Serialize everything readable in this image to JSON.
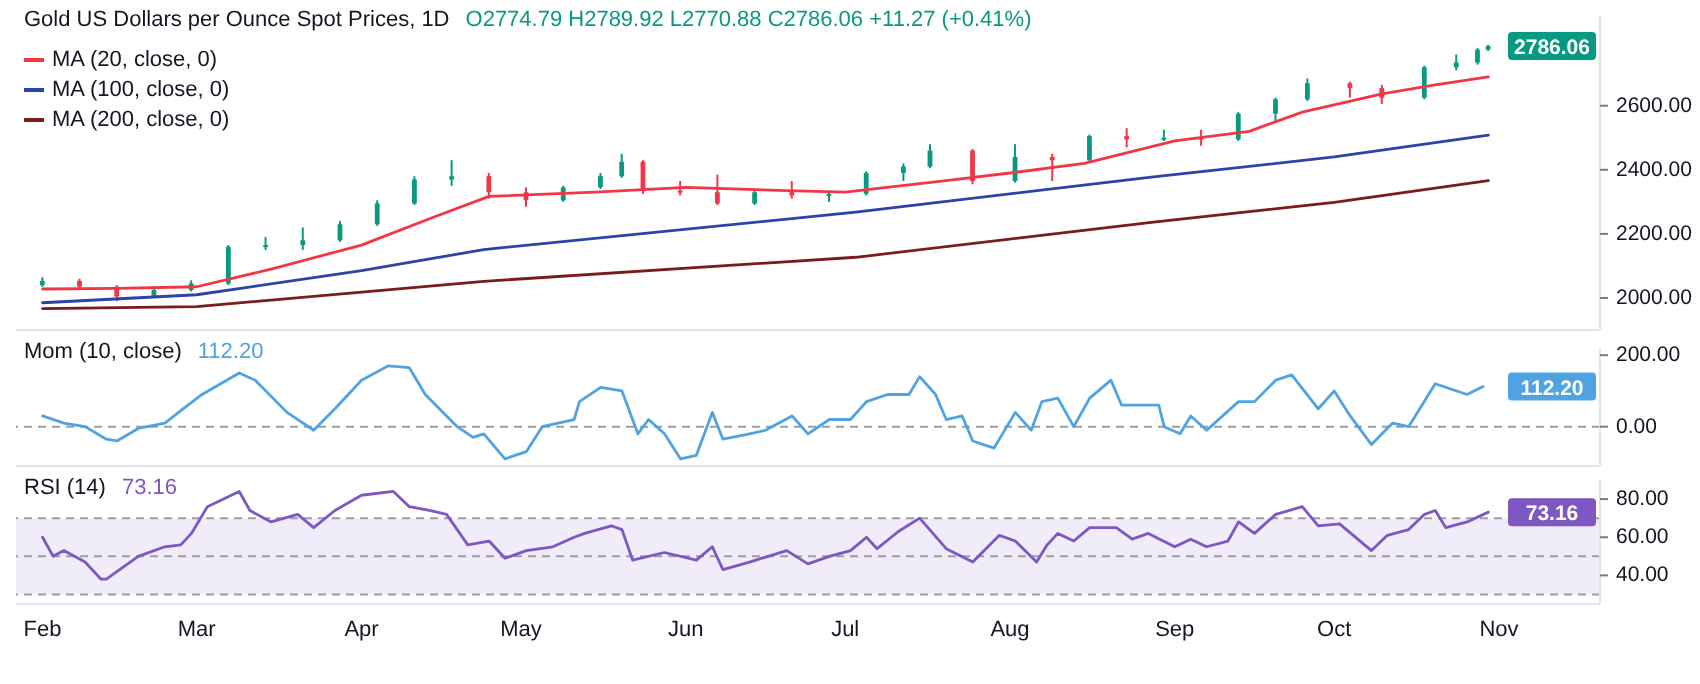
{
  "chart_data": [
    {
      "type": "candlestick",
      "title": "Gold US Dollars per Ounce Spot Prices, 1D",
      "subtitle": "O2774.79 H2789.92 L2770.88 C2786.06 +11.27 (+0.41%)",
      "legend": "top left",
      "tick_labels": "y",
      "xlim": [
        "--01-27",
        "--11-20"
      ],
      "ylim": [
        1900,
        2880
      ],
      "yticks": [
        {
          "value": 2000,
          "label": "2000.00"
        },
        {
          "value": 2200,
          "label": "2200.00"
        },
        {
          "value": 2400,
          "label": "2400.00"
        },
        {
          "value": 2600,
          "label": "2600.00"
        }
      ],
      "annotations": [
        {
          "text": "2786.06",
          "x": "--10-30",
          "y": 2786.06
        }
      ],
      "series": [
        {
          "type": "candlestick",
          "x": [
            "--02-01",
            "--02-08",
            "--02-15",
            "--02-22",
            "--02-29",
            "--03-07",
            "--03-14",
            "--03-21",
            "--03-28",
            "--04-04",
            "--04-11",
            "--04-18",
            "--04-25",
            "--05-02",
            "--05-09",
            "--05-16",
            "--05-20",
            "--05-24",
            "--05-31",
            "--06-07",
            "--06-14",
            "--06-21",
            "--06-28",
            "--07-05",
            "--07-12",
            "--07-17",
            "--07-25",
            "--08-02",
            "--08-09",
            "--08-16",
            "--08-23",
            "--08-30",
            "--09-06",
            "--09-13",
            "--09-20",
            "--09-26",
            "--10-04",
            "--10-10",
            "--10-18",
            "--10-24",
            "--10-28",
            "--10-30"
          ],
          "ohlc": [
            [
              2040,
              2065,
              2035,
              2053
            ],
            [
              2053,
              2060,
              2025,
              2035
            ],
            [
              2035,
              2040,
              1990,
              2005
            ],
            [
              2005,
              2035,
              2000,
              2025
            ],
            [
              2025,
              2055,
              2020,
              2045
            ],
            [
              2045,
              2165,
              2040,
              2160
            ],
            [
              2160,
              2190,
              2150,
              2165
            ],
            [
              2165,
              2220,
              2150,
              2180
            ],
            [
              2180,
              2240,
              2175,
              2230
            ],
            [
              2230,
              2305,
              2225,
              2295
            ],
            [
              2295,
              2380,
              2290,
              2370
            ],
            [
              2370,
              2430,
              2350,
              2380
            ],
            [
              2380,
              2390,
              2310,
              2330
            ],
            [
              2330,
              2345,
              2285,
              2305
            ],
            [
              2305,
              2350,
              2300,
              2345
            ],
            [
              2345,
              2390,
              2340,
              2380
            ],
            [
              2380,
              2450,
              2375,
              2425
            ],
            [
              2425,
              2430,
              2325,
              2335
            ],
            [
              2335,
              2365,
              2320,
              2330
            ],
            [
              2330,
              2385,
              2290,
              2295
            ],
            [
              2295,
              2335,
              2290,
              2330
            ],
            [
              2330,
              2365,
              2310,
              2320
            ],
            [
              2320,
              2335,
              2300,
              2325
            ],
            [
              2325,
              2395,
              2320,
              2390
            ],
            [
              2390,
              2420,
              2365,
              2410
            ],
            [
              2410,
              2480,
              2405,
              2460
            ],
            [
              2460,
              2465,
              2355,
              2365
            ],
            [
              2365,
              2480,
              2360,
              2440
            ],
            [
              2440,
              2450,
              2365,
              2430
            ],
            [
              2430,
              2510,
              2425,
              2505
            ],
            [
              2505,
              2530,
              2470,
              2495
            ],
            [
              2495,
              2525,
              2490,
              2500
            ],
            [
              2500,
              2525,
              2475,
              2495
            ],
            [
              2495,
              2580,
              2490,
              2575
            ],
            [
              2575,
              2625,
              2550,
              2620
            ],
            [
              2620,
              2685,
              2615,
              2670
            ],
            [
              2670,
              2675,
              2625,
              2655
            ],
            [
              2655,
              2665,
              2605,
              2625
            ],
            [
              2625,
              2725,
              2620,
              2720
            ],
            [
              2720,
              2760,
              2710,
              2735
            ],
            [
              2735,
              2780,
              2728,
              2774.79
            ],
            [
              2774.79,
              2789.92,
              2770.88,
              2786.06
            ]
          ],
          "colors": [
            "#089981",
            "#f23645",
            "#f23645",
            "#089981",
            "#089981",
            "#089981",
            "#089981",
            "#089981",
            "#089981",
            "#089981",
            "#089981",
            "#089981",
            "#f23645",
            "#f23645",
            "#089981",
            "#089981",
            "#089981",
            "#f23645",
            "#f23645",
            "#f23645",
            "#089981",
            "#f23645",
            "#089981",
            "#089981",
            "#089981",
            "#089981",
            "#f23645",
            "#089981",
            "#f23645",
            "#089981",
            "#f23645",
            "#089981",
            "#f23645",
            "#089981",
            "#089981",
            "#089981",
            "#f23645",
            "#f23645",
            "#089981",
            "#089981",
            "#089981",
            "#089981"
          ]
        },
        {
          "type": "line",
          "name": "MA (20, close, 0)",
          "color": "#f23645",
          "x": [
            "--02-01",
            "--02-15",
            "--03-01",
            "--03-15",
            "--04-01",
            "--04-15",
            "--04-25",
            "--05-15",
            "--06-01",
            "--06-20",
            "--07-01",
            "--07-20",
            "--08-01",
            "--08-15",
            "--09-01",
            "--09-15",
            "--09-25",
            "--10-10",
            "--10-20",
            "--10-30"
          ],
          "values": [
            2028,
            2030,
            2035,
            2090,
            2165,
            2255,
            2317,
            2330,
            2345,
            2335,
            2330,
            2366,
            2390,
            2420,
            2490,
            2520,
            2580,
            2637,
            2665,
            2690
          ]
        },
        {
          "type": "line",
          "name": "MA (100, close, 0)",
          "color": "#2a44a8",
          "x": [
            "--02-01",
            "--03-01",
            "--04-01",
            "--04-24",
            "--07-03",
            "--08-28",
            "--10-01",
            "--10-30"
          ],
          "values": [
            1985,
            2010,
            2085,
            2151,
            2268,
            2378,
            2440,
            2508
          ]
        },
        {
          "type": "line",
          "name": "MA (200, close, 0)",
          "color": "#7b1c1c",
          "x": [
            "--02-01",
            "--03-01",
            "--04-24",
            "--07-03",
            "--08-28",
            "--10-01",
            "--10-30"
          ],
          "values": [
            1967,
            1973,
            2052,
            2127,
            2237,
            2298,
            2366
          ]
        }
      ]
    },
    {
      "type": "line",
      "title": "Mom (10, close)",
      "tick_labels": "y",
      "xlim": [
        "--01-27",
        "--11-20"
      ],
      "ylim": [
        -110,
        220
      ],
      "yticks": [
        {
          "value": 0,
          "label": "0.00"
        },
        {
          "value": 200,
          "label": "200.00"
        }
      ],
      "ref_lines": [
        {
          "axis": "y",
          "value": 0,
          "color": "#9e9e9e",
          "line_style": "dashed"
        }
      ],
      "annotations": [
        "112.20",
        {
          "text": "112.20",
          "x": "--10-29",
          "y": 112.2
        }
      ],
      "series": [
        {
          "color": "#4fa3e0",
          "x": [
            "--02-01",
            "--02-05",
            "--02-09",
            "--02-13",
            "--02-15",
            "--02-19",
            "--02-24",
            "--02-27",
            "--03-02",
            "--03-09",
            "--03-12",
            "--03-18",
            "--03-23",
            "--03-27",
            "--04-01",
            "--04-06",
            "--04-10",
            "--04-13",
            "--04-19",
            "--04-22",
            "--04-24",
            "--04-28",
            "--05-02",
            "--05-05",
            "--05-11",
            "--05-12",
            "--05-16",
            "--05-20",
            "--05-23",
            "--05-25",
            "--05-28",
            "--05-31",
            "--06-03",
            "--06-06",
            "--06-08",
            "--06-13",
            "--06-16",
            "--06-21",
            "--06-24",
            "--06-28",
            "--07-02",
            "--07-05",
            "--07-09",
            "--07-13",
            "--07-15",
            "--07-18",
            "--07-20",
            "--07-23",
            "--07-25",
            "--07-29",
            "--08-02",
            "--08-05",
            "--08-07",
            "--08-10",
            "--08-13",
            "--08-16",
            "--08-20",
            "--08-22",
            "--08-26",
            "--08-29",
            "--08-30",
            "--09-02",
            "--09-04",
            "--09-07",
            "--09-13",
            "--09-16",
            "--09-20",
            "--09-23",
            "--09-28",
            "--10-01",
            "--10-04",
            "--10-08",
            "--10-12",
            "--10-15",
            "--10-20",
            "--10-26",
            "--10-29"
          ],
          "values": [
            30,
            10,
            0,
            -35,
            -40,
            -5,
            10,
            45,
            90,
            150,
            130,
            40,
            -10,
            50,
            130,
            170,
            165,
            90,
            0,
            -30,
            -20,
            -90,
            -70,
            0,
            20,
            70,
            110,
            100,
            -20,
            20,
            -20,
            -90,
            -80,
            40,
            -35,
            -20,
            -10,
            30,
            -20,
            20,
            20,
            70,
            90,
            90,
            140,
            90,
            20,
            30,
            -40,
            -60,
            40,
            -10,
            70,
            80,
            0,
            80,
            130,
            60,
            60,
            60,
            0,
            -20,
            30,
            -10,
            70,
            70,
            130,
            145,
            50,
            100,
            30,
            -50,
            10,
            0,
            120,
            90,
            112.2
          ]
        }
      ]
    },
    {
      "type": "line",
      "title": "RSI (14)",
      "xlim": [
        "--01-27",
        "--11-20"
      ],
      "ylim": [
        25,
        90
      ],
      "yticks": [
        {
          "value": 40,
          "label": "40.00"
        },
        {
          "value": 60,
          "label": "60.00"
        },
        {
          "value": 80,
          "label": "80.00"
        }
      ],
      "xticks": [
        {
          "value": "--02-01",
          "label": "Feb"
        },
        {
          "value": "--03-01",
          "label": "Mar"
        },
        {
          "value": "--04-01",
          "label": "Apr"
        },
        {
          "value": "--05-01",
          "label": "May"
        },
        {
          "value": "--06-01",
          "label": "Jun"
        },
        {
          "value": "--07-01",
          "label": "Jul"
        },
        {
          "value": "--08-01",
          "label": "Aug"
        },
        {
          "value": "--09-01",
          "label": "Sep"
        },
        {
          "value": "--10-01",
          "label": "Oct"
        },
        {
          "value": "--11-01",
          "label": "Nov"
        }
      ],
      "bands": [
        {
          "axis": "y",
          "from": 30,
          "to": 70,
          "color": "#f1ecf9"
        }
      ],
      "ref_lines": [
        {
          "axis": "y",
          "value": 70,
          "color": "#9e9e9e",
          "line_style": "dashed"
        },
        {
          "axis": "y",
          "value": 50,
          "color": "#9e9e9e",
          "line_style": "dashed"
        },
        {
          "axis": "y",
          "value": 30,
          "color": "#9e9e9e",
          "line_style": "dashed"
        }
      ],
      "annotations": [
        "73.16",
        {
          "text": "73.16",
          "x": "--10-30",
          "y": 73.16
        }
      ],
      "series": [
        {
          "color": "#7e57c2",
          "x": [
            "--02-01",
            "--02-03",
            "--02-05",
            "--02-09",
            "--02-12",
            "--02-13",
            "--02-19",
            "--02-24",
            "--02-27",
            "--02-29",
            "--03-03",
            "--03-09",
            "--03-11",
            "--03-15",
            "--03-20",
            "--03-23",
            "--03-27",
            "--04-01",
            "--04-07",
            "--04-10",
            "--04-14",
            "--04-17",
            "--04-21",
            "--04-25",
            "--04-28",
            "--05-02",
            "--05-07",
            "--05-11",
            "--05-13",
            "--05-18",
            "--05-20",
            "--05-22",
            "--05-28",
            "--06-03",
            "--06-06",
            "--06-08",
            "--06-13",
            "--06-20",
            "--06-24",
            "--06-28",
            "--07-02",
            "--07-05",
            "--07-07",
            "--07-11",
            "--07-15",
            "--07-20",
            "--07-25",
            "--07-30",
            "--08-02",
            "--08-06",
            "--08-08",
            "--08-10",
            "--08-13",
            "--08-16",
            "--08-21",
            "--08-24",
            "--08-27",
            "--09-01",
            "--09-04",
            "--09-07",
            "--09-11",
            "--09-13",
            "--09-16",
            "--09-20",
            "--09-25",
            "--09-28",
            "--10-02",
            "--10-08",
            "--10-11",
            "--10-15",
            "--10-18",
            "--10-20",
            "--10-22",
            "--10-26",
            "--10-30"
          ],
          "values": [
            60,
            50,
            53,
            47,
            38,
            38,
            50,
            55,
            56,
            62,
            76,
            84,
            74,
            68,
            72,
            65,
            74,
            82,
            84,
            76,
            74,
            72,
            56,
            58,
            49,
            53,
            55,
            60,
            62,
            66,
            64,
            48,
            52,
            48,
            55,
            43,
            47,
            53,
            46,
            50,
            53,
            60,
            54,
            63,
            70,
            54,
            47,
            61,
            58,
            47,
            56,
            62,
            58,
            65,
            65,
            59,
            62,
            55,
            59,
            55,
            58,
            68,
            62,
            72,
            76,
            66,
            67,
            53,
            61,
            64,
            72,
            74,
            65,
            68,
            73.16
          ]
        }
      ]
    }
  ]
}
